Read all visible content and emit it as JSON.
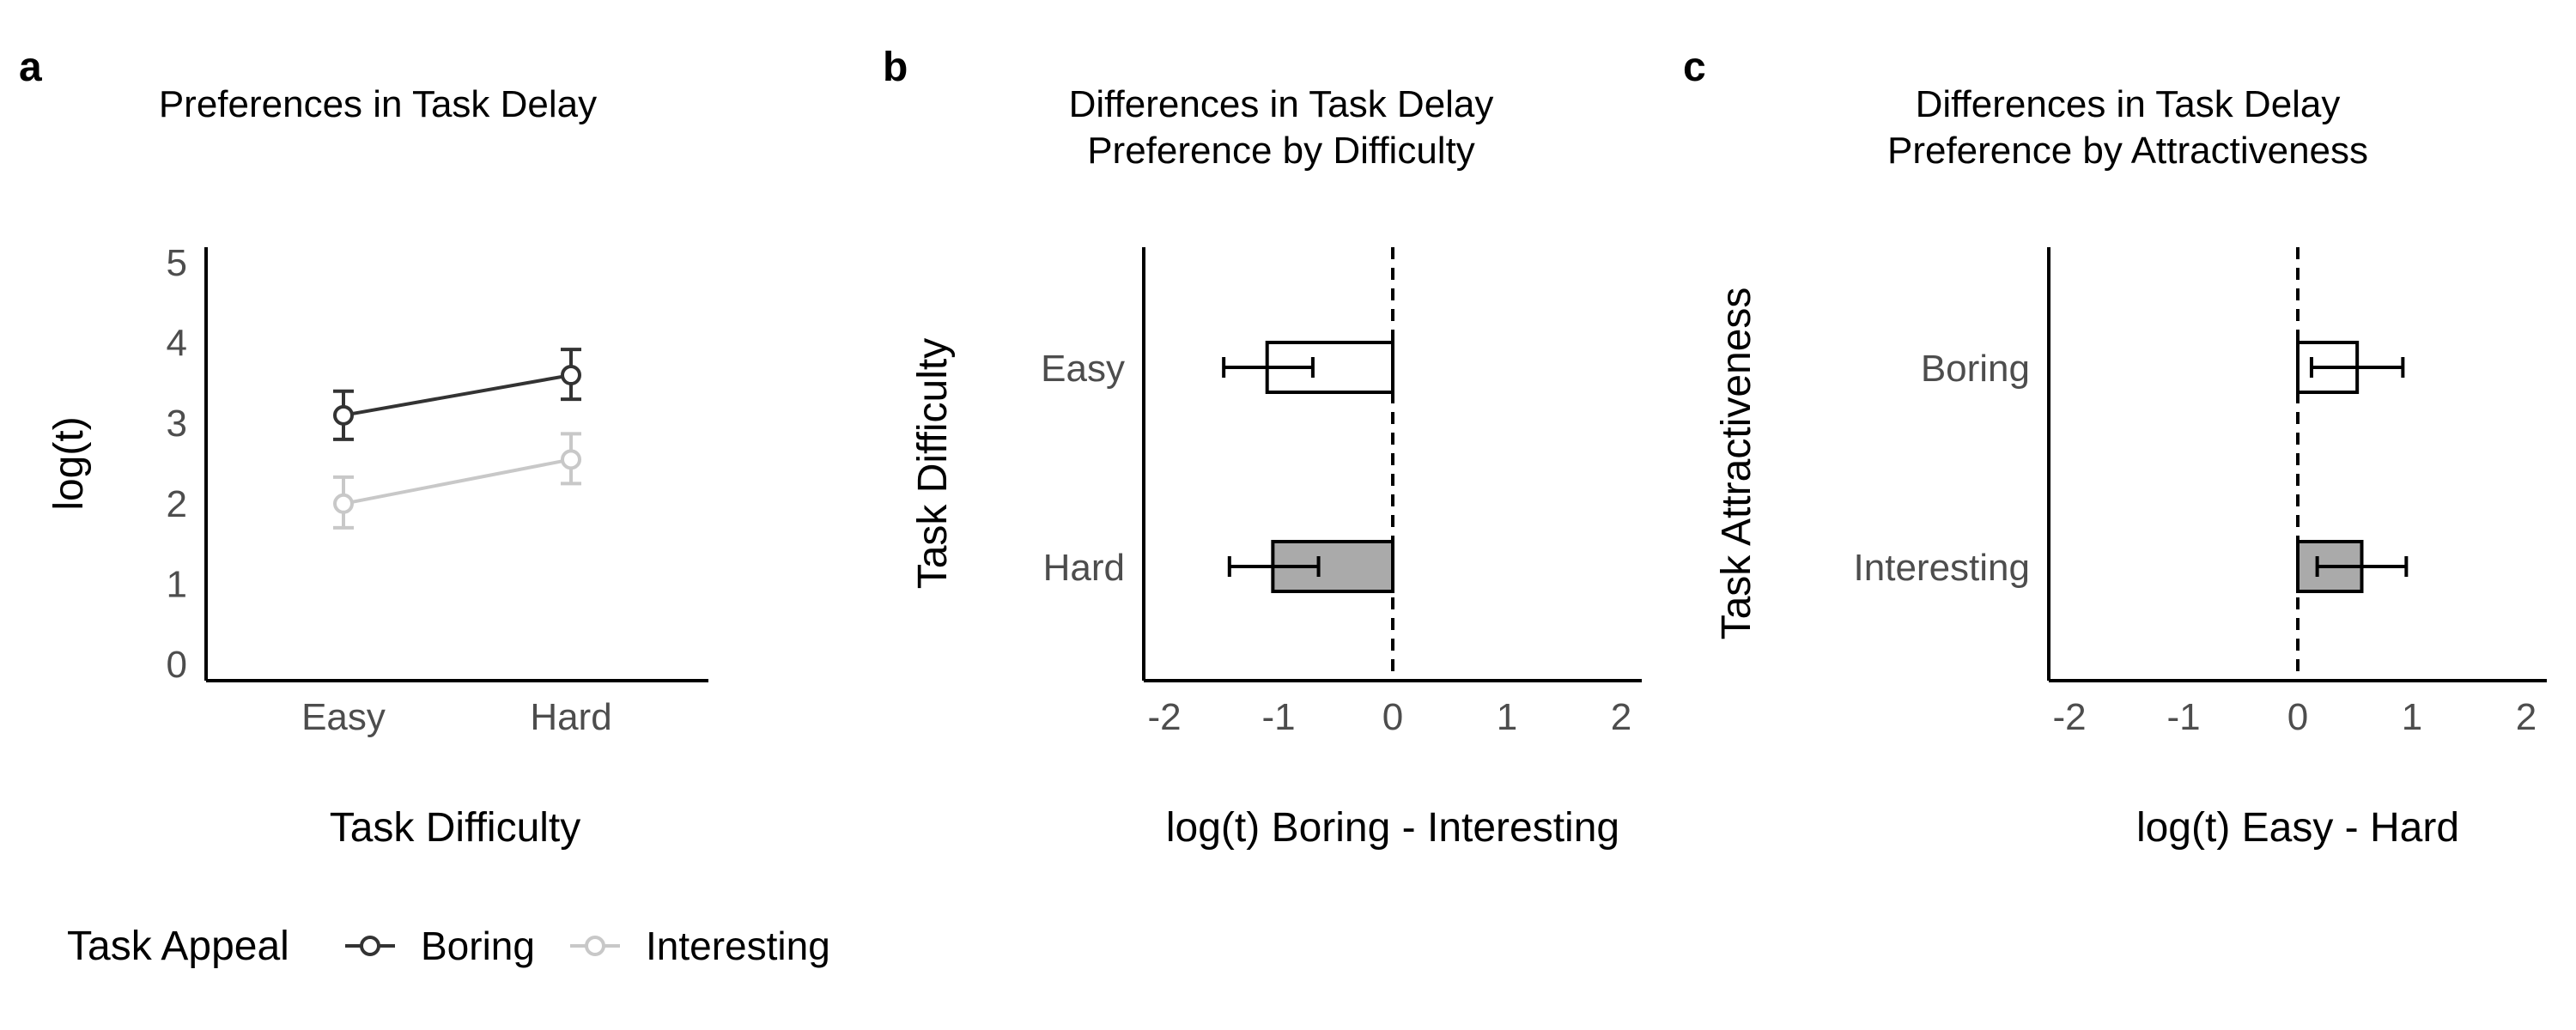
{
  "chart_data": [
    {
      "panel": "a",
      "type": "line",
      "title": "Preferences in Task Delay",
      "xlabel": "Task Difficulty",
      "ylabel": "log(t)",
      "categories": [
        "Easy",
        "Hard"
      ],
      "ylim": [
        -0.2,
        5.2
      ],
      "yticks": [
        0,
        1,
        2,
        3,
        4,
        5
      ],
      "grid": false,
      "legend": {
        "title": "Task Appeal",
        "placement": "bottom",
        "entries": [
          "Boring",
          "Interesting"
        ]
      },
      "series": [
        {
          "name": "Boring",
          "color": "#333333",
          "values": [
            3.1,
            3.6
          ],
          "err_low": [
            2.8,
            3.3
          ],
          "err_high": [
            3.4,
            3.92
          ]
        },
        {
          "name": "Interesting",
          "color": "#c8c8c8",
          "values": [
            2.0,
            2.55
          ],
          "err_low": [
            1.7,
            2.25
          ],
          "err_high": [
            2.33,
            2.87
          ]
        }
      ]
    },
    {
      "panel": "b",
      "type": "bar",
      "orientation": "horizontal",
      "title": "Differences in Task Delay\nPreference by Difficulty",
      "xlabel": "log(t) Boring - Interesting",
      "ylabel": "Task Difficulty",
      "categories": [
        "Easy",
        "Hard"
      ],
      "values": [
        -1.1,
        -1.05
      ],
      "err_low": [
        -1.48,
        -1.43
      ],
      "err_high": [
        -0.7,
        -0.65
      ],
      "fills": [
        "#ffffff",
        "#aaaaaa"
      ],
      "xlim": [
        -2.2,
        2.2
      ],
      "xticks": [
        -2,
        -1,
        0,
        1,
        2
      ],
      "reference_line": 0,
      "grid": false
    },
    {
      "panel": "c",
      "type": "bar",
      "orientation": "horizontal",
      "title": "Differences in Task Delay\nPreference by Attractiveness",
      "xlabel": "log(t) Easy - Hard",
      "ylabel": "Task Attractiveness",
      "categories": [
        "Boring",
        "Interesting"
      ],
      "values": [
        0.52,
        0.56
      ],
      "err_low": [
        0.12,
        0.17
      ],
      "err_high": [
        0.92,
        0.95
      ],
      "fills": [
        "#ffffff",
        "#aaaaaa"
      ],
      "xlim": [
        -2.2,
        2.2
      ],
      "xticks": [
        -2,
        -1,
        0,
        1,
        2
      ],
      "reference_line": 0,
      "grid": false
    }
  ]
}
